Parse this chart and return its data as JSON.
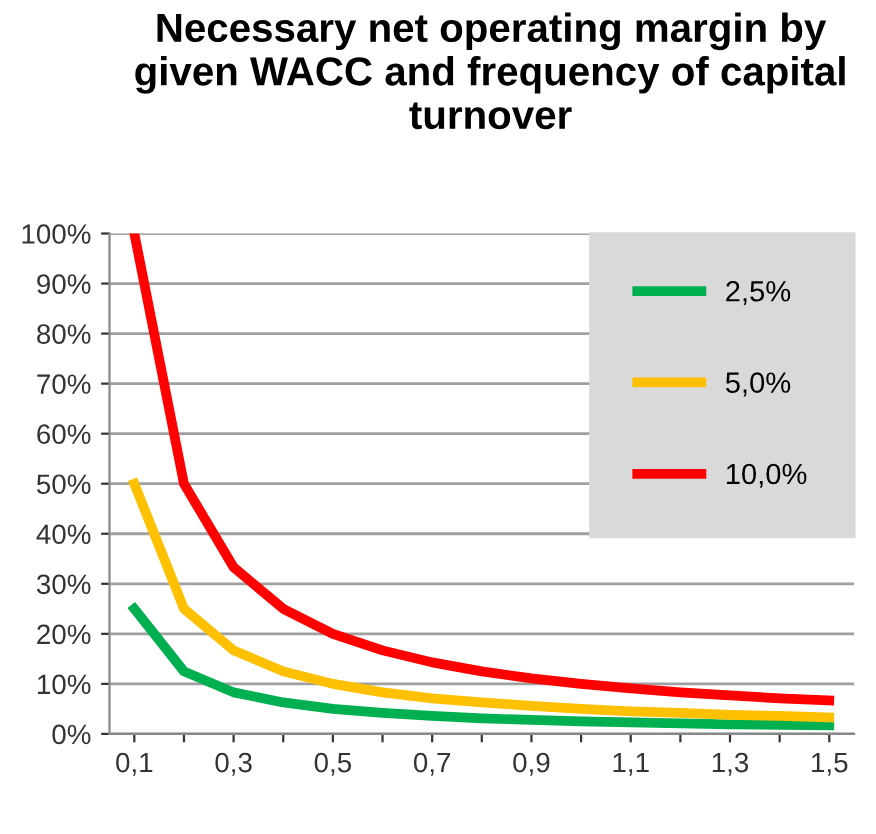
{
  "chart_data": {
    "type": "line",
    "title": "Necessary net operating margin by given WACC and frequency of capital turnover",
    "categories": [
      "0,1",
      null,
      "0,3",
      null,
      "0,5",
      null,
      "0,7",
      null,
      "0,9",
      null,
      "1,1",
      null,
      "1,3",
      null,
      "1,5"
    ],
    "series": [
      {
        "name": "2,5%",
        "color": "#00b050",
        "values": [
          25,
          12.5,
          8.3,
          6.3,
          5,
          4.2,
          3.6,
          3.1,
          2.8,
          2.5,
          2.3,
          2.1,
          1.9,
          1.8,
          1.7
        ]
      },
      {
        "name": "5,0%",
        "color": "#ffc000",
        "values": [
          50,
          25,
          16.7,
          12.5,
          10,
          8.3,
          7.1,
          6.3,
          5.6,
          5,
          4.5,
          4.2,
          3.8,
          3.6,
          3.3
        ]
      },
      {
        "name": "10,0%",
        "color": "#ff0000",
        "values": [
          100,
          50,
          33.3,
          25,
          20,
          16.7,
          14.3,
          12.5,
          11.1,
          10,
          9.1,
          8.3,
          7.7,
          7.1,
          6.7
        ]
      }
    ],
    "ylim": [
      0,
      100
    ],
    "yticks": [
      {
        "value": 0,
        "label": "0%"
      },
      {
        "value": 10,
        "label": "10%"
      },
      {
        "value": 20,
        "label": "20%"
      },
      {
        "value": 30,
        "label": "30%"
      },
      {
        "value": 40,
        "label": "40%"
      },
      {
        "value": 50,
        "label": "50%"
      },
      {
        "value": 60,
        "label": "60%"
      },
      {
        "value": 70,
        "label": "70%"
      },
      {
        "value": 80,
        "label": "80%"
      },
      {
        "value": 90,
        "label": "90%"
      },
      {
        "value": 100,
        "label": "100%"
      }
    ],
    "grid": "y",
    "legend": "top right",
    "marker": "none",
    "line_style": "solid"
  }
}
